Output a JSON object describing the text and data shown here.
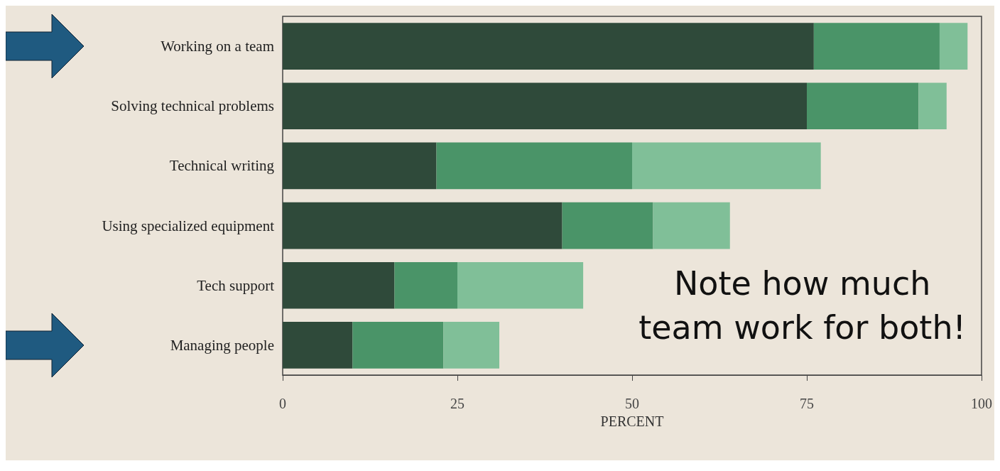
{
  "chart_data": {
    "type": "bar",
    "orientation": "horizontal",
    "stacked": true,
    "categories": [
      "Working on a team",
      "Solving technical problems",
      "Technical writing",
      "Using specialized equipment",
      "Tech support",
      "Managing people"
    ],
    "series": [
      {
        "color": "#2f4a3a",
        "values": [
          76,
          75,
          22,
          40,
          16,
          10
        ]
      },
      {
        "color": "#4a9468",
        "values": [
          18,
          16,
          28,
          13,
          9,
          13
        ]
      },
      {
        "color": "#80bf98",
        "values": [
          4,
          4,
          27,
          11,
          18,
          8
        ]
      }
    ],
    "xlabel": "PERCENT",
    "xlim": [
      0,
      100
    ],
    "xticks": [
      0,
      25,
      50,
      75,
      100
    ],
    "grid": false,
    "annotations": [
      "Note how much team work for both!"
    ]
  }
}
